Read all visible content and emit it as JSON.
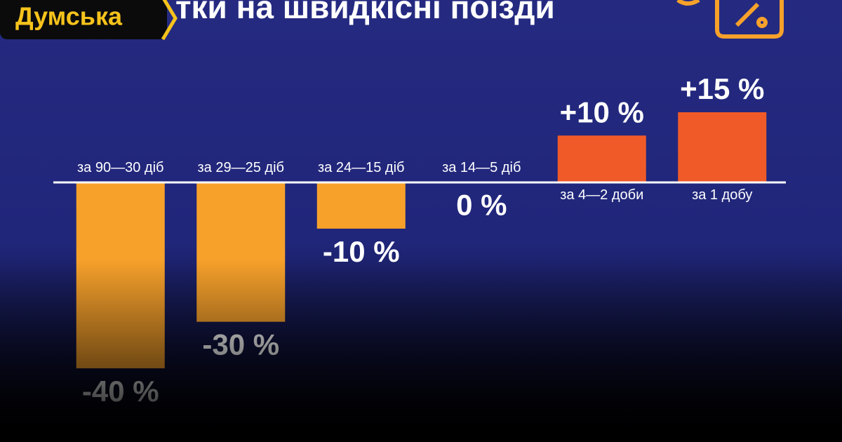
{
  "brand": "Думська",
  "chart_data": {
    "type": "bar",
    "title": "тки на швидкісні поїзди",
    "categories": [
      "за 90—30 діб",
      "за 29—25 діб",
      "за 24—15 діб",
      "за 14—5 діб",
      "за 4—2 доби",
      "за 1 добу"
    ],
    "values": [
      -40,
      -30,
      -10,
      0,
      10,
      15
    ],
    "value_labels": [
      "-40 %",
      "-30 %",
      "-10 %",
      "0 %",
      "+10 %",
      "+15 %"
    ],
    "colors": [
      "#f7a12b",
      "#f7a12b",
      "#f7a12b",
      "#f7a12b",
      "#f05a28",
      "#f05a28"
    ],
    "ylim": [
      -40,
      15
    ]
  }
}
